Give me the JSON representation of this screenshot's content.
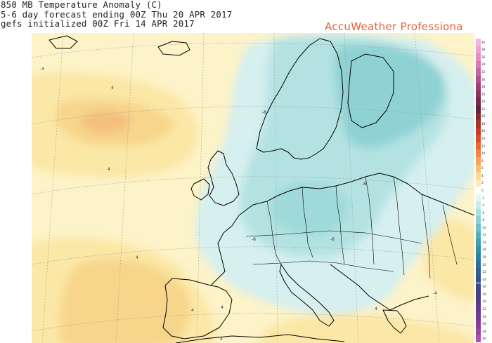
{
  "header": {
    "line1": "850 MB Temperature Anomaly (C)",
    "line2": "5-6 day forecast ending 00Z Thu 20 APR 2017",
    "line3": "gefs initialized 00Z Fri 14 APR 2017"
  },
  "brand": {
    "text": "AccuWeather Professiona",
    "color": "#e8603a"
  },
  "map": {
    "contour_labels": [
      "-4",
      "4",
      "4",
      "-8",
      "-8",
      "-8",
      "-8",
      "4",
      "4",
      "4",
      "4",
      "-4",
      "4"
    ],
    "colors": {
      "ocean_background": "#fdf3c8",
      "warm_light": "#fbe7a6",
      "warm_mid": "#f7d58b",
      "warm_core": "#f4c07c",
      "cold_light": "#d6efef",
      "cold_mid": "#b4e2e2",
      "cold_core": "#8fd2d4",
      "coastline": "#000000",
      "grid": "#9a9a9a"
    }
  },
  "legend": {
    "labels": [
      "40",
      "38",
      "36",
      "34",
      "32",
      "30",
      "28",
      "26",
      "24",
      "22",
      "20",
      "18",
      "16",
      "14",
      "12",
      "10",
      "8",
      "6",
      "4",
      "2",
      "0",
      "-2",
      "-4",
      "-6",
      "-8",
      "-10",
      "-12",
      "-14",
      "-16",
      "-18",
      "-20",
      "-22",
      "-24",
      "-26",
      "-28",
      "-30",
      "-32",
      "-34",
      "-36",
      "-38",
      "-40"
    ],
    "colors": [
      "#f6b5e0",
      "#f0a0d4",
      "#e58ac3",
      "#d877b2",
      "#c764a0",
      "#b4508c",
      "#a03f77",
      "#8a3360",
      "#75294d",
      "#63243e",
      "#8b2b26",
      "#a83225",
      "#c23d28",
      "#d74f2d",
      "#e56937",
      "#ef8643",
      "#f5a357",
      "#f8be6e",
      "#fbd78f",
      "#fdecb8",
      "#ffffff",
      "#e5f5f5",
      "#c8ebeb",
      "#a9dfe0",
      "#8ad2d4",
      "#6cc2c8",
      "#53b1bc",
      "#3fa0b0",
      "#3090a8",
      "#2a7fa0",
      "#2a6e99",
      "#2e5f93",
      "#35518e",
      "#3f4689",
      "#4a3e86",
      "#573a86",
      "#653889",
      "#75398e",
      "#863d96",
      "#9845a2",
      "#aa50ae"
    ]
  }
}
